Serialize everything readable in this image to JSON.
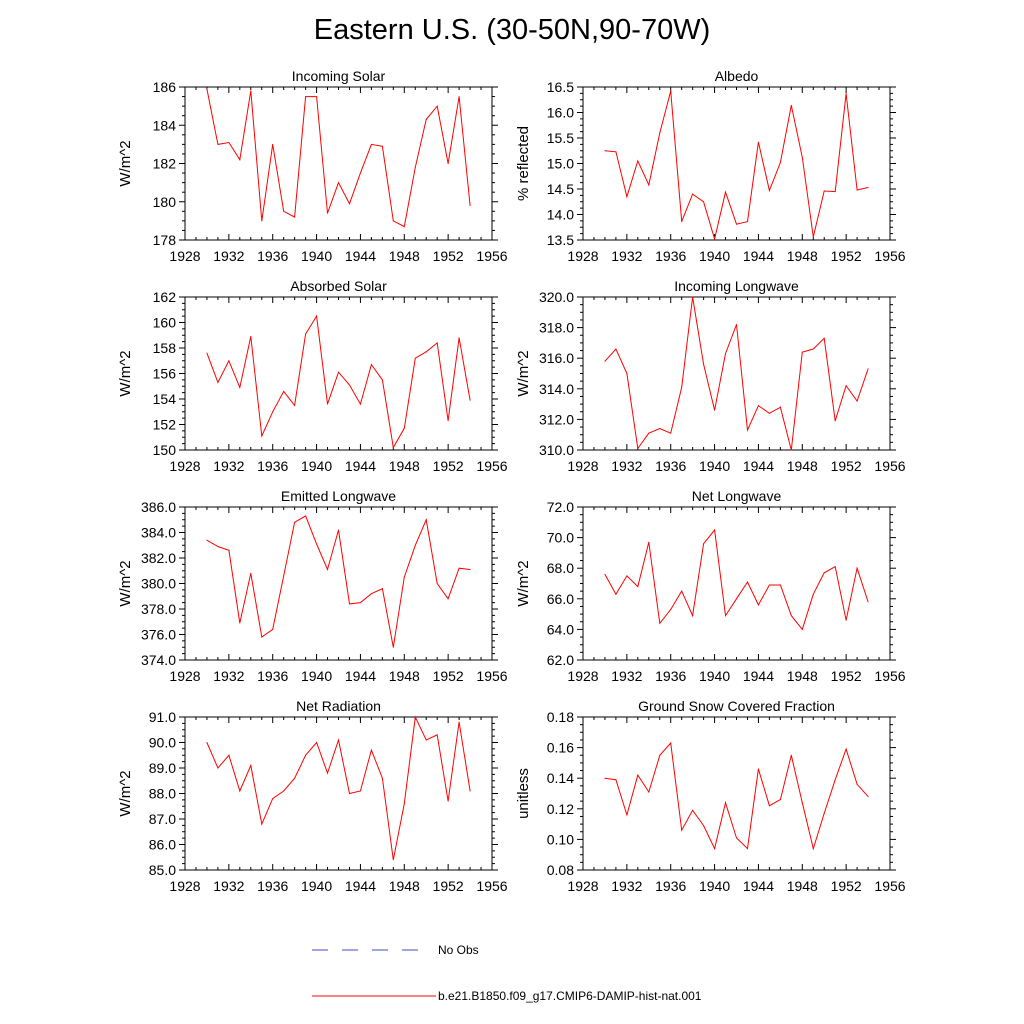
{
  "title": "Eastern U.S. (30-50N,90-70W)",
  "legend": [
    {
      "label": "No Obs",
      "color": "#3b4cc0",
      "style": "dashed"
    },
    {
      "label": "b.e21.B1850.f09_g17.CMIP6-DAMIP-hist-nat.001",
      "color": "#ff0000",
      "style": "solid"
    }
  ],
  "chart_data": [
    {
      "type": "line",
      "title": "Incoming Solar",
      "ylabel": "W/m^2",
      "xlim": [
        1928,
        1956
      ],
      "ylim": [
        178,
        186
      ],
      "xticks": [
        1928,
        1932,
        1936,
        1940,
        1944,
        1948,
        1952,
        1956
      ],
      "yticks": [
        "178",
        "180",
        "182",
        "184",
        "186"
      ],
      "x": [
        1930,
        1931,
        1932,
        1933,
        1934,
        1935,
        1936,
        1937,
        1938,
        1939,
        1940,
        1941,
        1942,
        1943,
        1944,
        1945,
        1946,
        1947,
        1948,
        1949,
        1950,
        1951,
        1952,
        1953,
        1954
      ],
      "series": [
        {
          "color": "#ff0000",
          "values": [
            185.9,
            183.0,
            183.1,
            182.2,
            185.8,
            179.0,
            183.0,
            179.5,
            179.2,
            185.5,
            185.5,
            179.4,
            181.0,
            179.9,
            181.5,
            183.0,
            182.9,
            179.0,
            178.7,
            181.8,
            184.3,
            185.0,
            182.0,
            185.5,
            179.8
          ]
        }
      ]
    },
    {
      "type": "line",
      "title": "Albedo",
      "ylabel": "% reflected",
      "xlim": [
        1928,
        1956
      ],
      "ylim": [
        13.5,
        16.5
      ],
      "xticks": [
        1928,
        1932,
        1936,
        1940,
        1944,
        1948,
        1952,
        1956
      ],
      "yticks": [
        "13.5",
        "14.0",
        "14.5",
        "15.0",
        "15.5",
        "16.0",
        "16.5"
      ],
      "x": [
        1930,
        1931,
        1932,
        1933,
        1934,
        1935,
        1936,
        1937,
        1938,
        1939,
        1940,
        1941,
        1942,
        1943,
        1944,
        1945,
        1946,
        1947,
        1948,
        1949,
        1950,
        1951,
        1952,
        1953,
        1954
      ],
      "series": [
        {
          "color": "#ff0000",
          "values": [
            15.25,
            15.23,
            14.35,
            15.05,
            14.58,
            15.6,
            16.42,
            13.86,
            14.4,
            14.25,
            13.52,
            14.44,
            13.81,
            13.86,
            15.42,
            14.47,
            15.02,
            16.14,
            15.12,
            13.56,
            14.46,
            14.45,
            16.37,
            14.48,
            14.53
          ]
        }
      ]
    },
    {
      "type": "line",
      "title": "Absorbed Solar",
      "ylabel": "W/m^2",
      "xlim": [
        1928,
        1956
      ],
      "ylim": [
        150,
        162
      ],
      "xticks": [
        1928,
        1932,
        1936,
        1940,
        1944,
        1948,
        1952,
        1956
      ],
      "yticks": [
        "150",
        "152",
        "154",
        "156",
        "158",
        "160",
        "162"
      ],
      "x": [
        1930,
        1931,
        1932,
        1933,
        1934,
        1935,
        1936,
        1937,
        1938,
        1939,
        1940,
        1941,
        1942,
        1943,
        1944,
        1945,
        1946,
        1947,
        1948,
        1949,
        1950,
        1951,
        1952,
        1953,
        1954
      ],
      "series": [
        {
          "color": "#ff0000",
          "values": [
            157.6,
            155.3,
            157.0,
            154.9,
            158.9,
            151.1,
            153.0,
            154.6,
            153.5,
            159.1,
            160.5,
            153.6,
            156.1,
            155.1,
            153.6,
            156.7,
            155.5,
            150.2,
            151.7,
            157.2,
            157.7,
            158.4,
            152.3,
            158.8,
            153.9
          ]
        }
      ]
    },
    {
      "type": "line",
      "title": "Incoming Longwave",
      "ylabel": "W/m^2",
      "xlim": [
        1928,
        1956
      ],
      "ylim": [
        310.0,
        320.0
      ],
      "xticks": [
        1928,
        1932,
        1936,
        1940,
        1944,
        1948,
        1952,
        1956
      ],
      "yticks": [
        "310.0",
        "312.0",
        "314.0",
        "316.0",
        "318.0",
        "320.0"
      ],
      "x": [
        1930,
        1931,
        1932,
        1933,
        1934,
        1935,
        1936,
        1937,
        1938,
        1939,
        1940,
        1941,
        1942,
        1943,
        1944,
        1945,
        1946,
        1947,
        1948,
        1949,
        1950,
        1951,
        1952,
        1953,
        1954
      ],
      "series": [
        {
          "color": "#ff0000",
          "values": [
            315.8,
            316.6,
            315.0,
            310.1,
            311.1,
            311.4,
            311.1,
            314.1,
            320.0,
            315.6,
            312.6,
            316.3,
            318.2,
            311.3,
            312.9,
            312.4,
            312.8,
            310.0,
            316.4,
            316.6,
            317.3,
            311.9,
            314.2,
            313.2,
            315.3
          ]
        }
      ]
    },
    {
      "type": "line",
      "title": "Emitted Longwave",
      "ylabel": "W/m^2",
      "xlim": [
        1928,
        1956
      ],
      "ylim": [
        374.0,
        386.0
      ],
      "xticks": [
        1928,
        1932,
        1936,
        1940,
        1944,
        1948,
        1952,
        1956
      ],
      "yticks": [
        "374.0",
        "376.0",
        "378.0",
        "380.0",
        "382.0",
        "384.0",
        "386.0"
      ],
      "x": [
        1930,
        1931,
        1932,
        1933,
        1934,
        1935,
        1936,
        1937,
        1938,
        1939,
        1940,
        1941,
        1942,
        1943,
        1944,
        1945,
        1946,
        1947,
        1948,
        1949,
        1950,
        1951,
        1952,
        1953,
        1954
      ],
      "series": [
        {
          "color": "#ff0000",
          "values": [
            383.4,
            382.9,
            382.6,
            376.9,
            380.8,
            375.8,
            376.4,
            380.6,
            384.8,
            385.3,
            383.1,
            381.1,
            384.2,
            378.4,
            378.5,
            379.2,
            379.6,
            375.0,
            380.5,
            383.0,
            385.0,
            380.0,
            378.8,
            381.2,
            381.1
          ]
        }
      ]
    },
    {
      "type": "line",
      "title": "Net Longwave",
      "ylabel": "W/m^2",
      "xlim": [
        1928,
        1956
      ],
      "ylim": [
        62.0,
        72.0
      ],
      "xticks": [
        1928,
        1932,
        1936,
        1940,
        1944,
        1948,
        1952,
        1956
      ],
      "yticks": [
        "62.0",
        "64.0",
        "66.0",
        "68.0",
        "70.0",
        "72.0"
      ],
      "x": [
        1930,
        1931,
        1932,
        1933,
        1934,
        1935,
        1936,
        1937,
        1938,
        1939,
        1940,
        1941,
        1942,
        1943,
        1944,
        1945,
        1946,
        1947,
        1948,
        1949,
        1950,
        1951,
        1952,
        1953,
        1954
      ],
      "series": [
        {
          "color": "#ff0000",
          "values": [
            67.6,
            66.3,
            67.5,
            66.8,
            69.7,
            64.4,
            65.3,
            66.5,
            64.9,
            69.6,
            70.5,
            64.9,
            66.0,
            67.1,
            65.6,
            66.9,
            66.9,
            64.9,
            64.0,
            66.3,
            67.7,
            68.1,
            64.6,
            68.0,
            65.8
          ]
        }
      ]
    },
    {
      "type": "line",
      "title": "Net Radiation",
      "ylabel": "W/m^2",
      "xlim": [
        1928,
        1956
      ],
      "ylim": [
        85.0,
        91.0
      ],
      "xticks": [
        1928,
        1932,
        1936,
        1940,
        1944,
        1948,
        1952,
        1956
      ],
      "yticks": [
        "85.0",
        "86.0",
        "87.0",
        "88.0",
        "89.0",
        "90.0",
        "91.0"
      ],
      "x": [
        1930,
        1931,
        1932,
        1933,
        1934,
        1935,
        1936,
        1937,
        1938,
        1939,
        1940,
        1941,
        1942,
        1943,
        1944,
        1945,
        1946,
        1947,
        1948,
        1949,
        1950,
        1951,
        1952,
        1953,
        1954
      ],
      "series": [
        {
          "color": "#ff0000",
          "values": [
            90.0,
            89.0,
            89.5,
            88.1,
            89.1,
            86.8,
            87.8,
            88.1,
            88.6,
            89.5,
            90.0,
            88.8,
            90.1,
            88.0,
            88.1,
            89.7,
            88.6,
            85.4,
            87.6,
            91.0,
            90.1,
            90.3,
            87.7,
            90.8,
            88.1
          ]
        }
      ]
    },
    {
      "type": "line",
      "title": "Ground Snow Covered Fraction",
      "ylabel": "unitless",
      "xlim": [
        1928,
        1956
      ],
      "ylim": [
        0.08,
        0.18
      ],
      "xticks": [
        1928,
        1932,
        1936,
        1940,
        1944,
        1948,
        1952,
        1956
      ],
      "yticks": [
        "0.08",
        "0.10",
        "0.12",
        "0.14",
        "0.16",
        "0.18"
      ],
      "x": [
        1930,
        1931,
        1932,
        1933,
        1934,
        1935,
        1936,
        1937,
        1938,
        1939,
        1940,
        1941,
        1942,
        1943,
        1944,
        1945,
        1946,
        1947,
        1948,
        1949,
        1950,
        1951,
        1952,
        1953,
        1954
      ],
      "series": [
        {
          "color": "#ff0000",
          "values": [
            0.14,
            0.139,
            0.116,
            0.142,
            0.131,
            0.155,
            0.163,
            0.106,
            0.119,
            0.109,
            0.094,
            0.124,
            0.101,
            0.094,
            0.146,
            0.122,
            0.126,
            0.155,
            0.124,
            0.094,
            0.117,
            0.139,
            0.159,
            0.136,
            0.128
          ]
        }
      ]
    }
  ]
}
